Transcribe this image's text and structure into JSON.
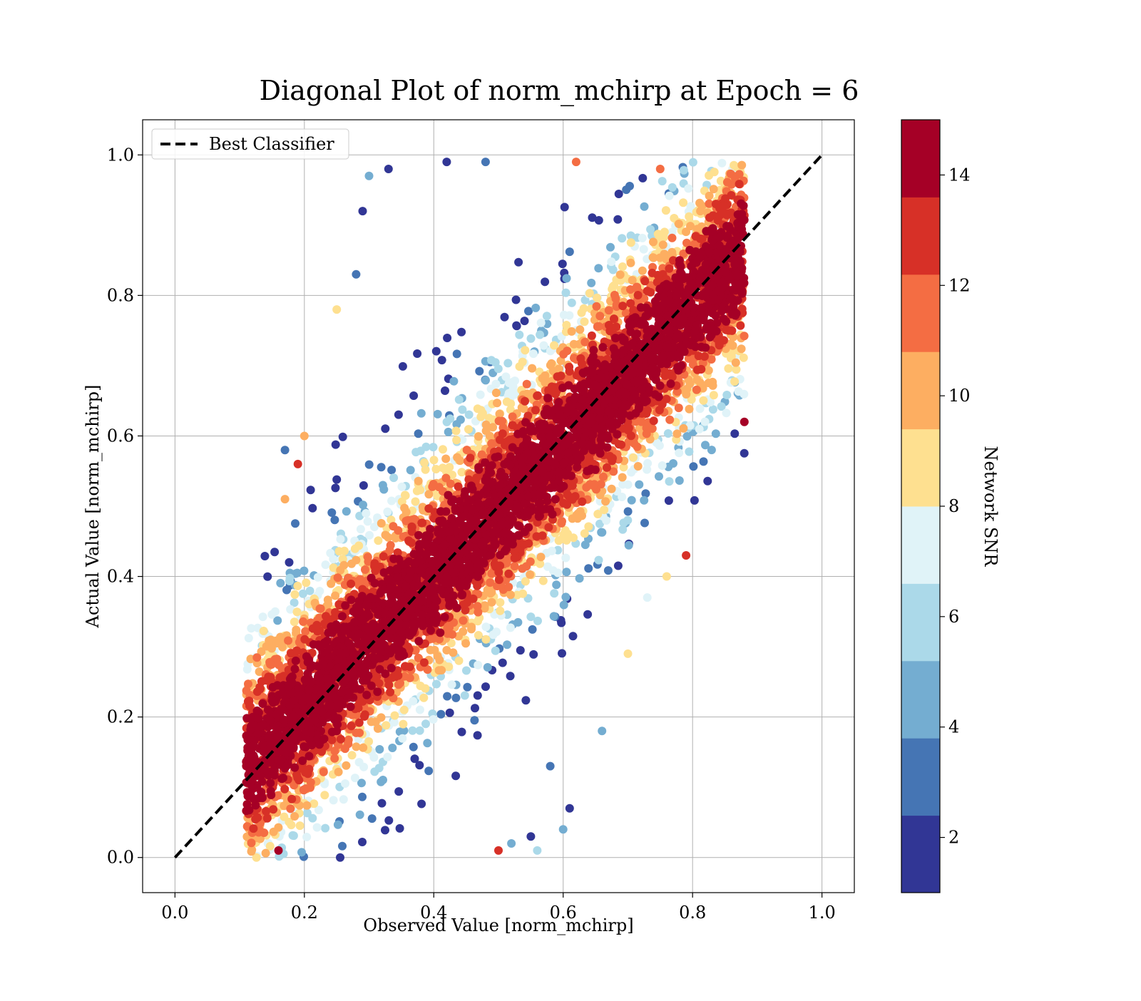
{
  "chart_data": {
    "type": "scatter",
    "title": "Diagonal Plot of norm_mchirp at Epoch = 6",
    "xlabel": "Observed Value [norm_mchirp]",
    "ylabel": "Actual Value [norm_mchirp]",
    "xlim": [
      -0.05,
      1.05
    ],
    "ylim": [
      -0.05,
      1.05
    ],
    "xticks": [
      0.0,
      0.2,
      0.4,
      0.6,
      0.8,
      1.0
    ],
    "xtick_labels": [
      "0.0",
      "0.2",
      "0.4",
      "0.6",
      "0.8",
      "1.0"
    ],
    "yticks": [
      0.0,
      0.2,
      0.4,
      0.6,
      0.8,
      1.0
    ],
    "ytick_labels": [
      "0.0",
      "0.2",
      "0.4",
      "0.6",
      "0.8",
      "1.0"
    ],
    "grid": true,
    "legend": {
      "position": "top-left",
      "entries": [
        {
          "name": "Best Classifier",
          "style": "dashed",
          "color": "#000000"
        }
      ]
    },
    "reference_line": {
      "name": "Best Classifier",
      "x": [
        0.0,
        1.0
      ],
      "y": [
        0.0,
        1.0
      ],
      "style": "dashed",
      "color": "#000000"
    },
    "colorbar": {
      "label": "Network SNR",
      "range": [
        1,
        15
      ],
      "ticks": [
        2,
        4,
        6,
        8,
        10,
        12,
        14
      ],
      "tick_labels": [
        "2",
        "4",
        "6",
        "8",
        "10",
        "12",
        "14"
      ],
      "bins": [
        {
          "from": 1,
          "to": 2.4,
          "color": "#313695"
        },
        {
          "from": 2.4,
          "to": 3.8,
          "color": "#4575b4"
        },
        {
          "from": 3.8,
          "to": 5.2,
          "color": "#74add1"
        },
        {
          "from": 5.2,
          "to": 6.6,
          "color": "#abd9e9"
        },
        {
          "from": 6.6,
          "to": 8.0,
          "color": "#e0f3f8"
        },
        {
          "from": 8.0,
          "to": 9.4,
          "color": "#fee090"
        },
        {
          "from": 9.4,
          "to": 10.8,
          "color": "#fdae61"
        },
        {
          "from": 10.8,
          "to": 12.2,
          "color": "#f46d43"
        },
        {
          "from": 12.2,
          "to": 13.6,
          "color": "#d73027"
        },
        {
          "from": 13.6,
          "to": 15.0,
          "color": "#a50026"
        }
      ]
    },
    "colorbar_ticks": [
      {
        "value": 2,
        "label": "2"
      },
      {
        "value": 4,
        "label": "4"
      },
      {
        "value": 6,
        "label": "6"
      },
      {
        "value": 8,
        "label": "8"
      },
      {
        "value": 10,
        "label": "10"
      },
      {
        "value": 12,
        "label": "12"
      },
      {
        "value": 14,
        "label": "14"
      }
    ],
    "points_note": "dense cloud along diagonal, spread ±0.25; high SNR (~14) concentrated near diagonal, low SNR scattered toward upper-left and lower-right",
    "sample_points": [
      [
        0.12,
        0.14,
        14
      ],
      [
        0.13,
        0.04,
        11
      ],
      [
        0.15,
        0.16,
        14
      ],
      [
        0.16,
        0.01,
        14
      ],
      [
        0.17,
        0.51,
        10
      ],
      [
        0.17,
        0.58,
        3
      ],
      [
        0.19,
        0.56,
        13
      ],
      [
        0.2,
        0.6,
        10
      ],
      [
        0.25,
        0.78,
        9
      ],
      [
        0.28,
        0.83,
        3
      ],
      [
        0.29,
        0.92,
        2
      ],
      [
        0.3,
        0.97,
        5
      ],
      [
        0.33,
        0.98,
        2
      ],
      [
        0.42,
        0.99,
        2
      ],
      [
        0.48,
        0.99,
        3
      ],
      [
        0.5,
        0.01,
        13
      ],
      [
        0.52,
        0.02,
        4
      ],
      [
        0.55,
        0.03,
        2
      ],
      [
        0.56,
        0.01,
        6
      ],
      [
        0.6,
        0.04,
        5
      ],
      [
        0.61,
        0.07,
        2
      ],
      [
        0.58,
        0.13,
        3
      ],
      [
        0.66,
        0.18,
        5
      ],
      [
        0.7,
        0.29,
        8
      ],
      [
        0.73,
        0.37,
        7
      ],
      [
        0.76,
        0.4,
        9
      ],
      [
        0.79,
        0.43,
        13
      ],
      [
        0.86,
        0.8,
        12
      ],
      [
        0.87,
        0.77,
        13
      ],
      [
        0.88,
        0.62,
        14
      ],
      [
        0.85,
        0.91,
        12
      ],
      [
        0.62,
        0.99,
        12
      ],
      [
        0.75,
        0.98,
        12
      ],
      [
        0.41,
        0.32,
        14
      ],
      [
        0.5,
        0.5,
        14
      ],
      [
        0.6,
        0.62,
        14
      ],
      [
        0.7,
        0.7,
        14
      ],
      [
        0.3,
        0.28,
        14
      ],
      [
        0.25,
        0.18,
        14
      ],
      [
        0.78,
        0.85,
        14
      ]
    ]
  }
}
